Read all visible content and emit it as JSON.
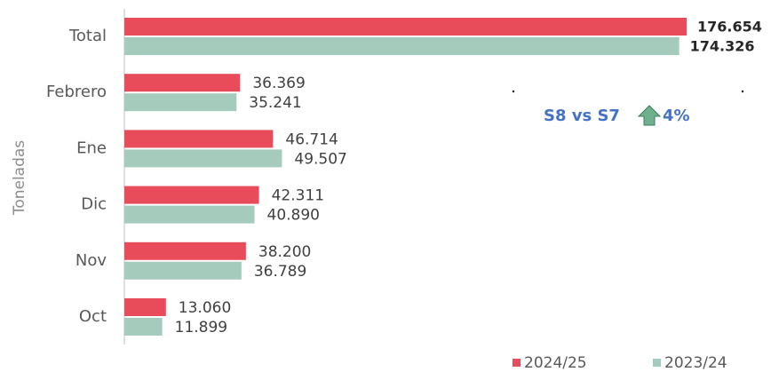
{
  "chart_data": {
    "type": "hbar",
    "y_label": "Toneladas",
    "categories": [
      "Total",
      "Febrero",
      "Ene",
      "Dic",
      "Nov",
      "Oct"
    ],
    "series": [
      {
        "name": "2024/25",
        "color": "#e84c5a",
        "values": [
          176654,
          36369,
          46714,
          42311,
          38200,
          13060
        ],
        "value_labels": [
          "176.654",
          "36.369",
          "46.714",
          "42.311",
          "38.200",
          "13.060"
        ]
      },
      {
        "name": "2023/24",
        "color": "#a5cbbd",
        "values": [
          174326,
          35241,
          49507,
          40890,
          36789,
          11899
        ],
        "value_labels": [
          "174.326",
          "35.241",
          "49.507",
          "40.890",
          "36.789",
          "11.899"
        ]
      }
    ],
    "annotation": {
      "text": "S8 vs S7",
      "change": "4%"
    },
    "legend": "bottom-right"
  }
}
